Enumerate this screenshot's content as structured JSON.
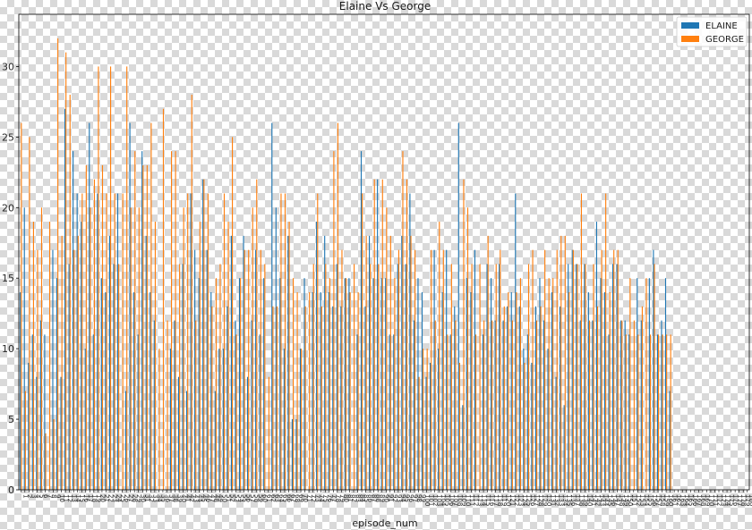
{
  "chart_data": {
    "type": "bar",
    "title": "Elaine Vs George",
    "xlabel": "episode_num",
    "ylabel": "",
    "ylim": [
      0,
      33.7
    ],
    "yticks": [
      0,
      5,
      10,
      15,
      20,
      25,
      30
    ],
    "legend_position": "top-right",
    "grid": false,
    "categories": [
      "1",
      "2",
      "3",
      "4",
      "5",
      "6",
      "7",
      "8",
      "9",
      "10",
      "11",
      "12",
      "13",
      "14",
      "15",
      "16",
      "17",
      "18",
      "19",
      "20",
      "21",
      "22",
      "23",
      "24",
      "25",
      "26",
      "27",
      "28",
      "29",
      "30",
      "31",
      "32",
      "33",
      "34",
      "35",
      "36",
      "37",
      "38",
      "39",
      "40",
      "41",
      "42",
      "43",
      "44",
      "45",
      "46",
      "47",
      "48",
      "49",
      "50",
      "51",
      "52",
      "53",
      "54",
      "55",
      "56",
      "57",
      "58",
      "59",
      "60",
      "61",
      "62",
      "63",
      "64",
      "65",
      "66",
      "67",
      "68",
      "69",
      "70",
      "71",
      "72",
      "73",
      "74",
      "75",
      "76",
      "77",
      "78",
      "79",
      "80",
      "81",
      "82",
      "83",
      "84",
      "85",
      "86",
      "87",
      "88",
      "89",
      "90",
      "91",
      "92",
      "93",
      "94",
      "95",
      "96",
      "97",
      "98",
      "99",
      "100",
      "101",
      "102",
      "103",
      "104",
      "105",
      "106",
      "107",
      "108",
      "109",
      "110",
      "111",
      "112",
      "113",
      "114",
      "115",
      "116",
      "117",
      "118",
      "119",
      "120",
      "121",
      "122",
      "123",
      "124",
      "125",
      "126",
      "127",
      "128",
      "129",
      "130",
      "131",
      "132",
      "133",
      "134",
      "135",
      "136",
      "137",
      "138",
      "139",
      "140",
      "141",
      "142",
      "143",
      "144",
      "145",
      "146",
      "147",
      "148",
      "149",
      "150",
      "151",
      "152",
      "153",
      "154",
      "155",
      "156",
      "157",
      "158",
      "159",
      "160",
      "161",
      "162",
      "163",
      "164",
      "165",
      "166",
      "167",
      "168",
      "169",
      "170",
      "171",
      "172",
      "173",
      "174",
      "175",
      "176",
      "177",
      "178",
      "179",
      "180"
    ],
    "series": [
      {
        "name": "ELAINE",
        "color": "#1f77b4",
        "values": [
          14,
          20,
          9,
          11,
          8,
          12,
          11,
          0,
          17,
          15,
          8,
          27,
          16,
          24,
          21,
          19,
          10,
          26,
          11,
          21,
          15,
          14,
          18,
          16,
          21,
          0,
          7,
          26,
          14,
          11,
          24,
          18,
          14,
          12,
          0,
          0,
          0,
          10,
          12,
          8,
          16,
          7,
          21,
          17,
          15,
          22,
          17,
          14,
          7,
          10,
          10,
          13,
          18,
          12,
          15,
          18,
          8,
          12,
          17,
          11,
          15,
          0,
          26,
          20,
          15,
          10,
          18,
          5,
          5,
          10,
          15,
          0,
          14,
          19,
          14,
          18,
          14,
          13,
          16,
          13,
          15,
          15,
          0,
          11,
          24,
          13,
          18,
          15,
          22,
          15,
          15,
          11,
          11,
          16,
          18,
          16,
          21,
          12,
          15,
          14,
          8,
          9,
          17,
          10,
          14,
          17,
          11,
          13,
          26,
          6,
          15,
          14,
          17,
          0,
          11,
          16,
          15,
          12,
          16,
          12,
          13,
          14,
          21,
          13,
          10,
          11,
          9,
          13,
          15,
          12,
          10,
          14,
          8,
          13,
          6,
          16,
          17,
          16,
          12,
          16,
          14,
          12,
          19,
          15,
          14,
          11,
          16,
          16,
          12,
          12,
          11,
          0,
          15,
          12,
          0,
          15,
          17,
          11,
          12,
          15,
          7,
          0,
          0,
          0,
          0,
          0,
          0,
          0,
          0,
          0,
          0,
          0,
          0,
          0,
          0,
          0,
          0,
          0,
          0,
          0
        ]
      },
      {
        "name": "GEORGE",
        "color": "#ff7f0e",
        "values": [
          26,
          7,
          25,
          19,
          17,
          20,
          4,
          19,
          5,
          32,
          18,
          31,
          28,
          17,
          18,
          21,
          23,
          20,
          22,
          30,
          23,
          21,
          30,
          21,
          16,
          21,
          30,
          20,
          24,
          20,
          23,
          23,
          26,
          19,
          10,
          27,
          12,
          24,
          24,
          16,
          20,
          21,
          28,
          12,
          19,
          22,
          21,
          13,
          15,
          16,
          21,
          19,
          25,
          11,
          15,
          17,
          17,
          20,
          22,
          17,
          16,
          8,
          13,
          13,
          21,
          21,
          19,
          15,
          14,
          10,
          13,
          14,
          16,
          21,
          13,
          16,
          15,
          24,
          26,
          17,
          15,
          14,
          16,
          14,
          21,
          18,
          16,
          22,
          16,
          22,
          20,
          18,
          15,
          17,
          24,
          22,
          18,
          17,
          8,
          10,
          10,
          17,
          12,
          19,
          17,
          11,
          16,
          12,
          9,
          22,
          20,
          16,
          11,
          16,
          12,
          18,
          12,
          16,
          17,
          13,
          14,
          12,
          14,
          15,
          9,
          16,
          17,
          12,
          13,
          17,
          15,
          15,
          17,
          18,
          18,
          14,
          17,
          16,
          21,
          16,
          12,
          16,
          13,
          17,
          21,
          14,
          17,
          17,
          12,
          11,
          15,
          12,
          11,
          13,
          15,
          11,
          16,
          11,
          11,
          11,
          11,
          0,
          0,
          0,
          0,
          0,
          0,
          0,
          0,
          0,
          0,
          0,
          0,
          0,
          0,
          0,
          0,
          0,
          0,
          0
        ]
      }
    ]
  }
}
